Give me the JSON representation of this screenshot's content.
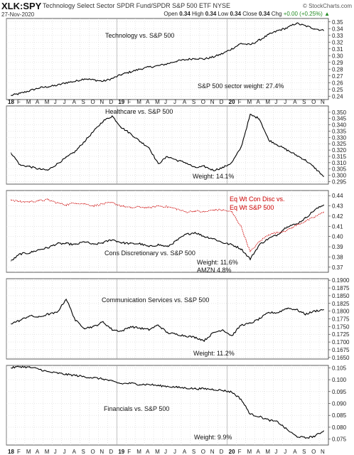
{
  "header": {
    "symbol": "XLK:SPY",
    "name": "Technology Select Sector SPDR Fund/SPDR S&P 500 ETF  NYSE",
    "date": "27-Nov-2020",
    "ohlc": [
      {
        "k": "Open",
        "v": "0.34"
      },
      {
        "k": "High",
        "v": "0.34"
      },
      {
        "k": "Low",
        "v": "0.34"
      },
      {
        "k": "Close",
        "v": "0.34"
      }
    ],
    "chg_label": "Chg",
    "chg_value": "+0.00 (+0.25%)",
    "chg_arrow": "▲",
    "brand": "© StockCharts.com",
    "up_color": "#228B22"
  },
  "x_axis": {
    "labels": [
      "18",
      "F",
      "M",
      "A",
      "M",
      "J",
      "J",
      "A",
      "S",
      "O",
      "N",
      "D",
      "19",
      "F",
      "M",
      "A",
      "M",
      "J",
      "J",
      "A",
      "S",
      "O",
      "N",
      "D",
      "20",
      "F",
      "M",
      "A",
      "M",
      "J",
      "J",
      "A",
      "S",
      "O",
      "N"
    ],
    "year_labels": [
      "18",
      "19",
      "20"
    ]
  },
  "chart_data": [
    {
      "type": "line",
      "series": [
        {
          "values": [
            0.241,
            0.244,
            0.248,
            0.252,
            0.254,
            0.256,
            0.26,
            0.262,
            0.266,
            0.264,
            0.262,
            0.266,
            0.272,
            0.276,
            0.28,
            0.283,
            0.285,
            0.288,
            0.292,
            0.294,
            0.296,
            0.295,
            0.298,
            0.303,
            0.31,
            0.318,
            0.316,
            0.323,
            0.331,
            0.337,
            0.341,
            0.348,
            0.344,
            0.34,
            0.337
          ]
        }
      ],
      "annotations": [
        "Technology vs. S&P 500",
        "S&P 500 sector weight: 27.4%"
      ],
      "ylim": [
        0.235,
        0.355
      ],
      "yticks": [
        "0.35",
        "0.34",
        "0.33",
        "0.32",
        "0.31",
        "0.30",
        "0.29",
        "0.28",
        "0.27",
        "0.26",
        "0.25",
        "0.24"
      ],
      "line_color": "#000000"
    },
    {
      "type": "line",
      "series": [
        {
          "values": [
            0.318,
            0.308,
            0.307,
            0.305,
            0.304,
            0.309,
            0.314,
            0.319,
            0.327,
            0.335,
            0.343,
            0.347,
            0.338,
            0.333,
            0.327,
            0.322,
            0.309,
            0.315,
            0.312,
            0.31,
            0.306,
            0.307,
            0.304,
            0.306,
            0.31,
            0.322,
            0.348,
            0.345,
            0.328,
            0.324,
            0.32,
            0.316,
            0.312,
            0.306,
            0.299
          ]
        }
      ],
      "annotations": [
        "Healthcare vs. S&P 500",
        "Weight: 14.1%"
      ],
      "ylim": [
        0.293,
        0.355
      ],
      "yticks": [
        "0.350",
        "0.345",
        "0.340",
        "0.335",
        "0.330",
        "0.325",
        "0.320",
        "0.315",
        "0.310",
        "0.305",
        "0.300",
        "0.295"
      ],
      "line_color": "#000000"
    },
    {
      "type": "line",
      "series": [
        {
          "name": "Cons Discretionary vs. S&P 500",
          "values": [
            0.376,
            0.383,
            0.384,
            0.387,
            0.389,
            0.393,
            0.393,
            0.392,
            0.395,
            0.392,
            0.394,
            0.397,
            0.394,
            0.393,
            0.393,
            0.39,
            0.392,
            0.39,
            0.396,
            0.402,
            0.404,
            0.4,
            0.398,
            0.394,
            0.392,
            0.388,
            0.378,
            0.392,
            0.398,
            0.402,
            0.41,
            0.412,
            0.418,
            0.426,
            0.431
          ]
        },
        {
          "name": "Eq Wt Con Disc vs. Eq Wt S&P 500",
          "values": [
            0.436,
            0.434,
            0.434,
            0.435,
            0.436,
            0.433,
            0.431,
            0.433,
            0.432,
            0.43,
            0.432,
            0.433,
            0.43,
            0.428,
            0.429,
            0.428,
            0.43,
            0.429,
            0.427,
            0.424,
            0.425,
            0.424,
            0.426,
            0.426,
            0.424,
            0.41,
            0.385,
            0.395,
            0.402,
            0.404,
            0.406,
            0.411,
            0.415,
            0.419,
            0.424
          ]
        }
      ],
      "annotations": [
        "Eq Wt Con Disc vs.",
        "Eq Wt S&P 500",
        "Cons Discretionary vs. S&P 500",
        "Weight: 11.6%",
        "AMZN 4.8%"
      ],
      "ylim": [
        0.365,
        0.445
      ],
      "yticks": [
        "0.44",
        "0.43",
        "0.42",
        "0.41",
        "0.40",
        "0.39",
        "0.38",
        "0.37"
      ],
      "line_color": "#000000",
      "alt_color": "#cc0000"
    },
    {
      "type": "line",
      "series": [
        {
          "values": [
            0.176,
            0.177,
            0.1785,
            0.178,
            0.179,
            0.1795,
            0.184,
            0.177,
            0.1745,
            0.175,
            0.1765,
            0.174,
            0.1735,
            0.175,
            0.1745,
            0.174,
            0.1755,
            0.173,
            0.1725,
            0.172,
            0.1715,
            0.1705,
            0.173,
            0.174,
            0.172,
            0.1755,
            0.176,
            0.1775,
            0.1795,
            0.1795,
            0.181,
            0.1805,
            0.179,
            0.18,
            0.1805
          ]
        }
      ],
      "annotations": [
        "Communication Services vs. S&P 500",
        "Weight: 11.2%"
      ],
      "ylim": [
        0.1645,
        0.1905
      ],
      "yticks": [
        "0.1900",
        "0.1875",
        "0.1850",
        "0.1825",
        "0.1800",
        "0.1775",
        "0.1750",
        "0.1725",
        "0.1700",
        "0.1675",
        "0.1650"
      ],
      "line_color": "#000000"
    },
    {
      "type": "line",
      "series": [
        {
          "values": [
            0.105,
            0.1055,
            0.1052,
            0.1045,
            0.1033,
            0.1028,
            0.1022,
            0.1018,
            0.1012,
            0.1008,
            0.1003,
            0.0993,
            0.0983,
            0.0985,
            0.098,
            0.098,
            0.0975,
            0.0972,
            0.0968,
            0.0965,
            0.0962,
            0.0962,
            0.0959,
            0.0955,
            0.0948,
            0.0918,
            0.0855,
            0.0845,
            0.083,
            0.0822,
            0.079,
            0.0762,
            0.0755,
            0.0762,
            0.0785
          ]
        }
      ],
      "annotations": [
        "Financials vs. S&P 500",
        "Weight: 9.9%"
      ],
      "ylim": [
        0.0725,
        0.106
      ],
      "yticks": [
        "0.105",
        "0.100",
        "0.095",
        "0.090",
        "0.085",
        "0.080",
        "0.075"
      ],
      "line_color": "#000000"
    }
  ]
}
